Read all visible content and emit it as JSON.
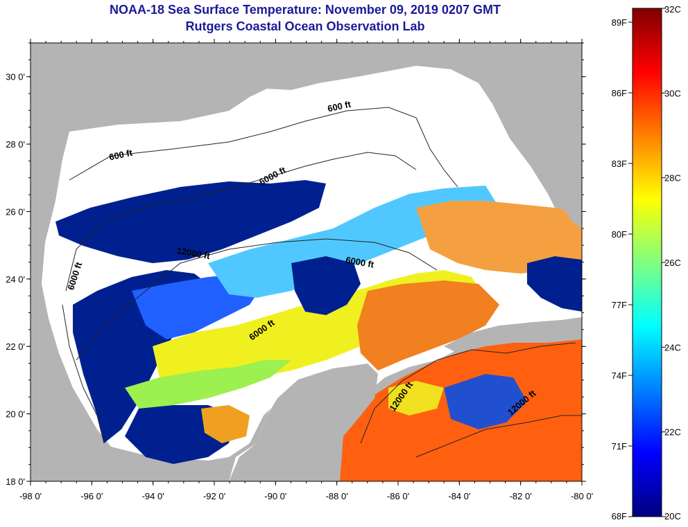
{
  "title": "NOAA-18 Sea Surface Temperature:  November 09, 2019 0207 GMT",
  "subtitle": "Rutgers Coastal Ocean Observation Lab",
  "map": {
    "lon_range": [
      -98,
      -80
    ],
    "lat_range": [
      18,
      31
    ],
    "lon_ticks": [
      "-98 0'",
      "-96 0'",
      "-94 0'",
      "-92 0'",
      "-90 0'",
      "-88 0'",
      "-86 0'",
      "-84 0'",
      "-82 0'",
      "-80 0'"
    ],
    "lat_ticks": [
      "18 0'",
      "20 0'",
      "22 0'",
      "24 0'",
      "26 0'",
      "28 0'",
      "30 0'"
    ],
    "land_color": "#b4b4b4",
    "cloud_color": "#ffffff",
    "contour_labels": [
      "600 ft",
      "600 ft",
      "6000 ft",
      "6000 ft",
      "12000 ft",
      "6000 ft",
      "6000 ft",
      "12000 ft",
      "12000 ft"
    ]
  },
  "colorbar": {
    "celsius_labels": [
      "32C",
      "30C",
      "28C",
      "26C",
      "24C",
      "22C",
      "20C"
    ],
    "fahrenheit_labels": [
      "89F",
      "86F",
      "83F",
      "80F",
      "77F",
      "74F",
      "71F",
      "68F"
    ],
    "stops": [
      "#00007f",
      "#0000ff",
      "#0080ff",
      "#00ffff",
      "#80ff80",
      "#ffff00",
      "#ff8000",
      "#ff0000",
      "#7f0000"
    ]
  }
}
